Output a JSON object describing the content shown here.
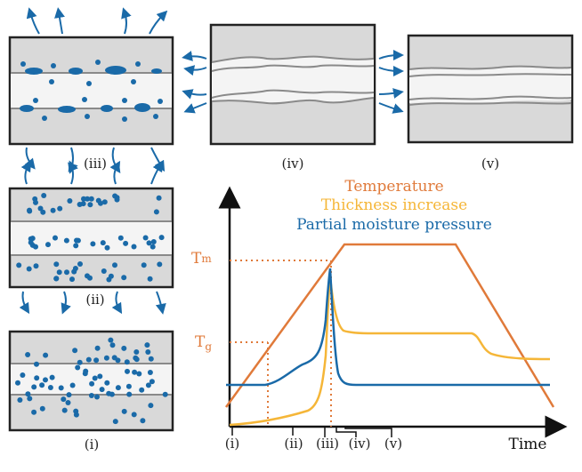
{
  "panels": {
    "i": "(i)",
    "ii": "(ii)",
    "iii": "(iii)",
    "iv": "(iv)",
    "v": "(v)"
  },
  "legend": {
    "temperature": "Temperature",
    "thickness": "Thickness increase",
    "moisture": "Partial moisture pressure"
  },
  "axis": {
    "x_label": "Time",
    "tm": "T",
    "tm_sub": "m",
    "tg": "T",
    "tg_sub": "g"
  },
  "time_markers": [
    "(i)",
    "(ii)",
    "(iii)",
    "(iv)",
    "(v)"
  ],
  "colors": {
    "temperature": "#e07a3a",
    "thickness": "#f5b638",
    "moisture": "#1a6aa8",
    "dot": "#1a6aa8",
    "panel_fill": "#d9d9d9",
    "panel_stroke": "#222222"
  }
}
